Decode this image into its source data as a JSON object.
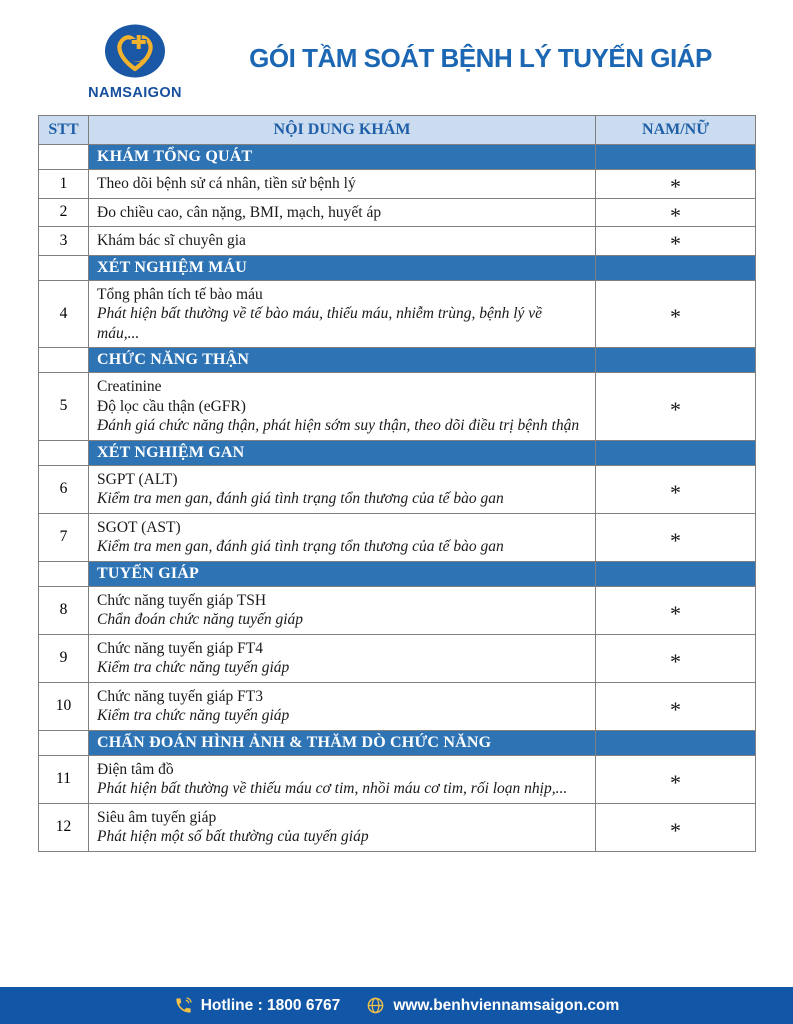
{
  "header": {
    "brand": "NAMSAIGON",
    "title": "GÓI TẦM SOÁT BỆNH LÝ TUYẾN GIÁP"
  },
  "table": {
    "headers": {
      "stt": "STT",
      "content": "NỘI DUNG KHÁM",
      "gender": "NAM/NỮ"
    },
    "rows": [
      {
        "type": "section",
        "label": "KHÁM TỔNG QUÁT"
      },
      {
        "type": "item",
        "stt": "1",
        "lines": [
          {
            "text": "Theo dõi bệnh sử cá nhân, tiền sử bệnh lý",
            "italic": false
          }
        ],
        "mark": "*"
      },
      {
        "type": "item",
        "stt": "2",
        "lines": [
          {
            "text": "Đo chiều cao, cân nặng, BMI, mạch, huyết áp",
            "italic": false
          }
        ],
        "mark": "*"
      },
      {
        "type": "item",
        "stt": "3",
        "lines": [
          {
            "text": "Khám bác sĩ chuyên gia",
            "italic": false
          }
        ],
        "mark": "*"
      },
      {
        "type": "section",
        "label": "XÉT NGHIỆM MÁU"
      },
      {
        "type": "item",
        "stt": "4",
        "lines": [
          {
            "text": "Tổng phân tích tế bào máu",
            "italic": false
          },
          {
            "text": "Phát hiện bất thường về tế bào máu, thiếu máu, nhiễm trùng, bệnh lý về máu,...",
            "italic": true
          }
        ],
        "mark": "*"
      },
      {
        "type": "section",
        "label": "CHỨC NĂNG THẬN"
      },
      {
        "type": "item",
        "stt": "5",
        "lines": [
          {
            "text": "Creatinine",
            "italic": false
          },
          {
            "text": "Độ lọc cầu thận (eGFR)",
            "italic": false
          },
          {
            "text": "Đánh giá chức năng thận, phát hiện sớm suy thận, theo dõi điều trị bệnh thận",
            "italic": true
          }
        ],
        "mark": "*"
      },
      {
        "type": "section",
        "label": "XÉT NGHIỆM GAN"
      },
      {
        "type": "item",
        "stt": "6",
        "lines": [
          {
            "text": "SGPT (ALT)",
            "italic": false
          },
          {
            "text": "Kiểm tra men gan, đánh giá tình trạng tổn thương của tế bào gan",
            "italic": true
          }
        ],
        "mark": "*"
      },
      {
        "type": "item",
        "stt": "7",
        "lines": [
          {
            "text": "SGOT (AST)",
            "italic": false
          },
          {
            "text": "Kiểm tra men gan, đánh giá tình trạng tổn thương của tế bào gan",
            "italic": true
          }
        ],
        "mark": "*"
      },
      {
        "type": "section",
        "label": "TUYẾN GIÁP"
      },
      {
        "type": "item",
        "stt": "8",
        "lines": [
          {
            "text": "Chức năng tuyến giáp TSH",
            "italic": false
          },
          {
            "text": "Chẩn đoán chức năng tuyến giáp",
            "italic": true
          }
        ],
        "mark": "*"
      },
      {
        "type": "item",
        "stt": "9",
        "lines": [
          {
            "text": "Chức năng tuyến giáp FT4",
            "italic": false
          },
          {
            "text": "Kiểm tra chức năng tuyến giáp",
            "italic": true
          }
        ],
        "mark": "*"
      },
      {
        "type": "item",
        "stt": "10",
        "lines": [
          {
            "text": "Chức năng tuyến giáp FT3",
            "italic": false
          },
          {
            "text": "Kiểm tra chức năng tuyến giáp",
            "italic": true
          }
        ],
        "mark": "*"
      },
      {
        "type": "section",
        "label": "CHẨN ĐOÁN HÌNH ẢNH & THĂM DÒ CHỨC NĂNG"
      },
      {
        "type": "item",
        "stt": "11",
        "lines": [
          {
            "text": "Điện tâm đồ",
            "italic": false
          },
          {
            "text": "Phát hiện bất thường về thiếu máu cơ tim, nhồi máu cơ tim, rối loạn nhịp,...",
            "italic": true
          }
        ],
        "mark": "*"
      },
      {
        "type": "item",
        "stt": "12",
        "lines": [
          {
            "text": "Siêu âm tuyến giáp",
            "italic": false
          },
          {
            "text": "Phát hiện một số bất thường của tuyến giáp",
            "italic": true
          }
        ],
        "mark": "*"
      }
    ]
  },
  "footer": {
    "hotline_label": "Hotline : 1800 6767",
    "website": "www.benhviennamsaigon.com"
  },
  "colors": {
    "section_bg": "#2e74b5",
    "table_head_bg": "#cbdcf0",
    "table_head_text": "#1f5fa8",
    "title_text": "#1b67b3",
    "footer_bg": "#1257a7",
    "logo_blue": "#1a57a5",
    "logo_yellow": "#f2b22d",
    "border_gray": "#808080"
  }
}
